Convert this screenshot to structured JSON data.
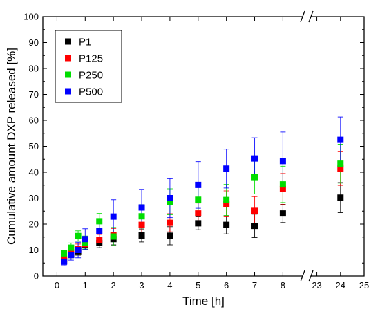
{
  "chart_data": {
    "type": "scatter",
    "title": "",
    "xlabel": "Time [h]",
    "ylabel": "Cumulative amount DXP released [%]",
    "ylim": [
      0,
      100
    ],
    "xlim_left": [
      -0.5,
      8.7
    ],
    "xlim_right": [
      22.75,
      25
    ],
    "axis_break": "between 8 and 23",
    "yticks": [
      0,
      10,
      20,
      30,
      40,
      50,
      60,
      70,
      80,
      90,
      100
    ],
    "xticks_left": [
      0,
      1,
      2,
      3,
      4,
      5,
      6,
      7,
      8
    ],
    "xticks_right": [
      23,
      24,
      25
    ],
    "grid": false,
    "legend_position": "top-left",
    "series": [
      {
        "name": "P1",
        "color": "#000000",
        "x": [
          0.25,
          0.5,
          0.75,
          1,
          1.5,
          2,
          3,
          4,
          5,
          6,
          7,
          8,
          24
        ],
        "y": [
          5.9,
          8.2,
          9.5,
          12.1,
          12.7,
          14.2,
          15.6,
          15.5,
          20.3,
          19.7,
          19.3,
          24.1,
          30.2
        ],
        "err": [
          0.8,
          1.2,
          1.5,
          2.0,
          1.8,
          2.2,
          2.5,
          3.5,
          2.5,
          3.5,
          4.5,
          3.5,
          5.8
        ]
      },
      {
        "name": "P125",
        "color": "#ff0000",
        "x": [
          0.25,
          0.5,
          0.75,
          1,
          1.5,
          2,
          3,
          4,
          5,
          6,
          7,
          8,
          24
        ],
        "y": [
          6.6,
          9.2,
          10.5,
          12.3,
          14.0,
          15.8,
          19.7,
          20.5,
          24.1,
          27.8,
          25.1,
          33.5,
          41.4
        ],
        "err": [
          1.0,
          1.5,
          1.8,
          2.2,
          2.0,
          2.5,
          3.0,
          3.5,
          4.0,
          5.0,
          5.5,
          6.0,
          6.5
        ]
      },
      {
        "name": "P250",
        "color": "#00dd00",
        "x": [
          0.25,
          0.5,
          0.75,
          1,
          1.5,
          2,
          3,
          4,
          5,
          6,
          7,
          8,
          24
        ],
        "y": [
          8.7,
          10.9,
          15.4,
          12.9,
          21.1,
          15.2,
          23.0,
          28.6,
          29.4,
          29.3,
          38.1,
          35.3,
          43.3
        ],
        "err": [
          1.2,
          1.8,
          2.0,
          2.5,
          3.0,
          3.5,
          4.5,
          5.0,
          5.5,
          6.0,
          6.5,
          7.0,
          7.5
        ]
      },
      {
        "name": "P500",
        "color": "#0000ff",
        "x": [
          0.25,
          0.5,
          0.75,
          1,
          1.5,
          2,
          3,
          4,
          5,
          6,
          7,
          8,
          24
        ],
        "y": [
          5.5,
          8.1,
          10.0,
          14.2,
          17.3,
          22.9,
          26.4,
          30.0,
          35.1,
          41.4,
          45.3,
          44.3,
          52.5
        ],
        "err": [
          1.5,
          2.0,
          3.0,
          4.0,
          4.5,
          6.5,
          7.0,
          7.5,
          9.0,
          7.5,
          8.0,
          11.2,
          8.8
        ]
      }
    ]
  }
}
